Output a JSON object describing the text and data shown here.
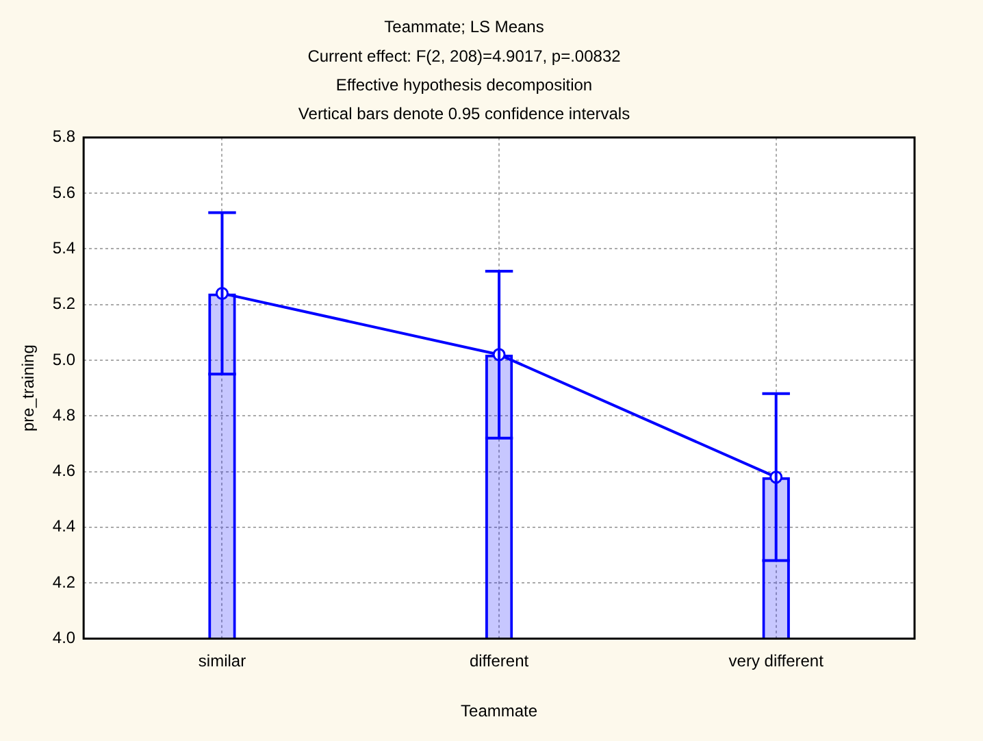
{
  "chart_data": {
    "type": "bar",
    "title": "Teammate; LS Means",
    "subtitle": "Current effect: F(2, 208)=4.9017, p=.00832",
    "annotations": [
      "Effective hypothesis decomposition",
      "Vertical bars denote 0.95 confidence intervals"
    ],
    "xlabel": "Teammate",
    "ylabel": "pre_training",
    "categories": [
      "similar",
      "different",
      "very different"
    ],
    "series": [
      {
        "color": "#0000ff",
        "values": [
          5.24,
          5.02,
          4.58
        ],
        "errors": [
          0.29,
          0.3,
          0.3
        ]
      },
      {
        "type": "line",
        "color": "#0000ff",
        "values": [
          5.24,
          5.02,
          4.58
        ]
      }
    ],
    "ylim": [
      4.0,
      5.8
    ],
    "yticks": [
      {
        "value": 4.0,
        "label": "4.0"
      },
      {
        "value": 4.2,
        "label": "4.2"
      },
      {
        "value": 4.4,
        "label": "4.4"
      },
      {
        "value": 4.6,
        "label": "4.6"
      },
      {
        "value": 4.8,
        "label": "4.8"
      },
      {
        "value": 5.0,
        "label": "5.0"
      },
      {
        "value": 5.2,
        "label": "5.2"
      },
      {
        "value": 5.4,
        "label": "5.4"
      },
      {
        "value": 5.6,
        "label": "5.6"
      },
      {
        "value": 5.8,
        "label": "5.8"
      }
    ],
    "grid": true,
    "legend": false,
    "marker": "circle",
    "line_style": "solid"
  }
}
